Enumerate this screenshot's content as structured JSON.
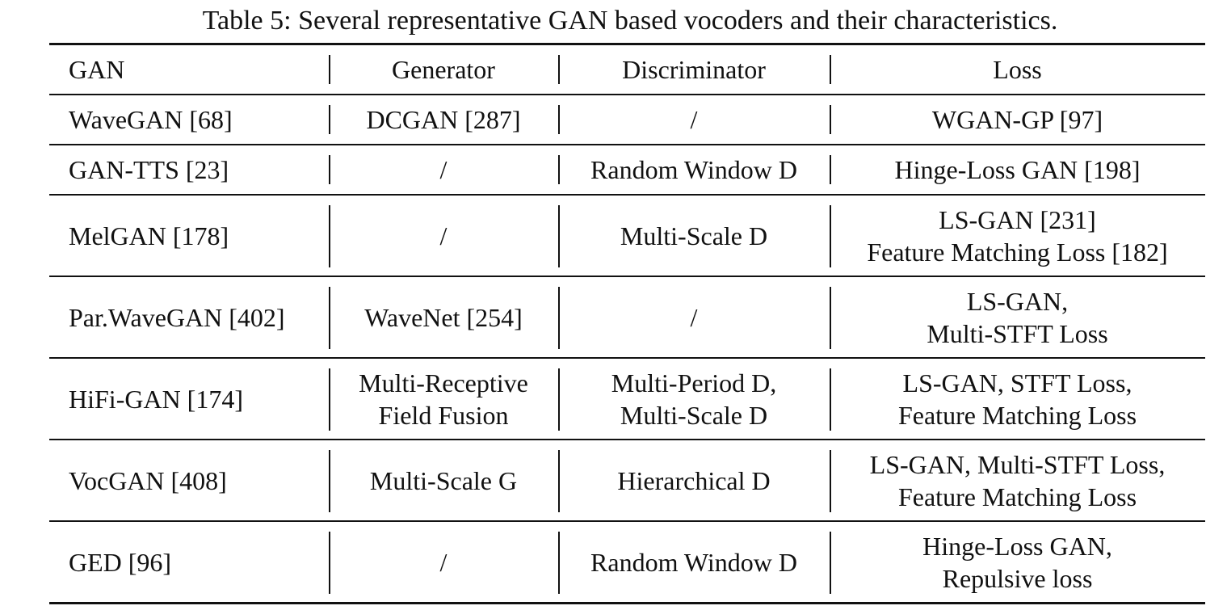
{
  "caption": "Table 5: Several representative GAN based vocoders and their characteristics.",
  "table": {
    "headers": [
      "GAN",
      "Generator",
      "Discriminator",
      "Loss"
    ],
    "rows": [
      {
        "gan": "WaveGAN [68]",
        "generator": [
          "DCGAN [287]"
        ],
        "discriminator": [
          "/"
        ],
        "loss": [
          "WGAN-GP [97]"
        ]
      },
      {
        "gan": "GAN-TTS [23]",
        "generator": [
          "/"
        ],
        "discriminator": [
          "Random Window D"
        ],
        "loss": [
          "Hinge-Loss GAN [198]"
        ]
      },
      {
        "gan": "MelGAN [178]",
        "generator": [
          "/"
        ],
        "discriminator": [
          "Multi-Scale D"
        ],
        "loss": [
          "LS-GAN [231]",
          "Feature Matching Loss [182]"
        ]
      },
      {
        "gan": "Par.WaveGAN [402]",
        "generator": [
          "WaveNet [254]"
        ],
        "discriminator": [
          "/"
        ],
        "loss": [
          "LS-GAN,",
          "Multi-STFT Loss"
        ]
      },
      {
        "gan": "HiFi-GAN [174]",
        "generator": [
          "Multi-Receptive",
          "Field Fusion"
        ],
        "discriminator": [
          "Multi-Period D,",
          "Multi-Scale D"
        ],
        "loss": [
          "LS-GAN, STFT Loss,",
          "Feature Matching Loss"
        ]
      },
      {
        "gan": "VocGAN [408]",
        "generator": [
          "Multi-Scale G"
        ],
        "discriminator": [
          "Hierarchical D"
        ],
        "loss": [
          "LS-GAN, Multi-STFT Loss,",
          "Feature Matching Loss"
        ]
      },
      {
        "gan": "GED [96]",
        "generator": [
          "/"
        ],
        "discriminator": [
          "Random Window D"
        ],
        "loss": [
          "Hinge-Loss GAN,",
          "Repulsive loss"
        ]
      }
    ]
  }
}
